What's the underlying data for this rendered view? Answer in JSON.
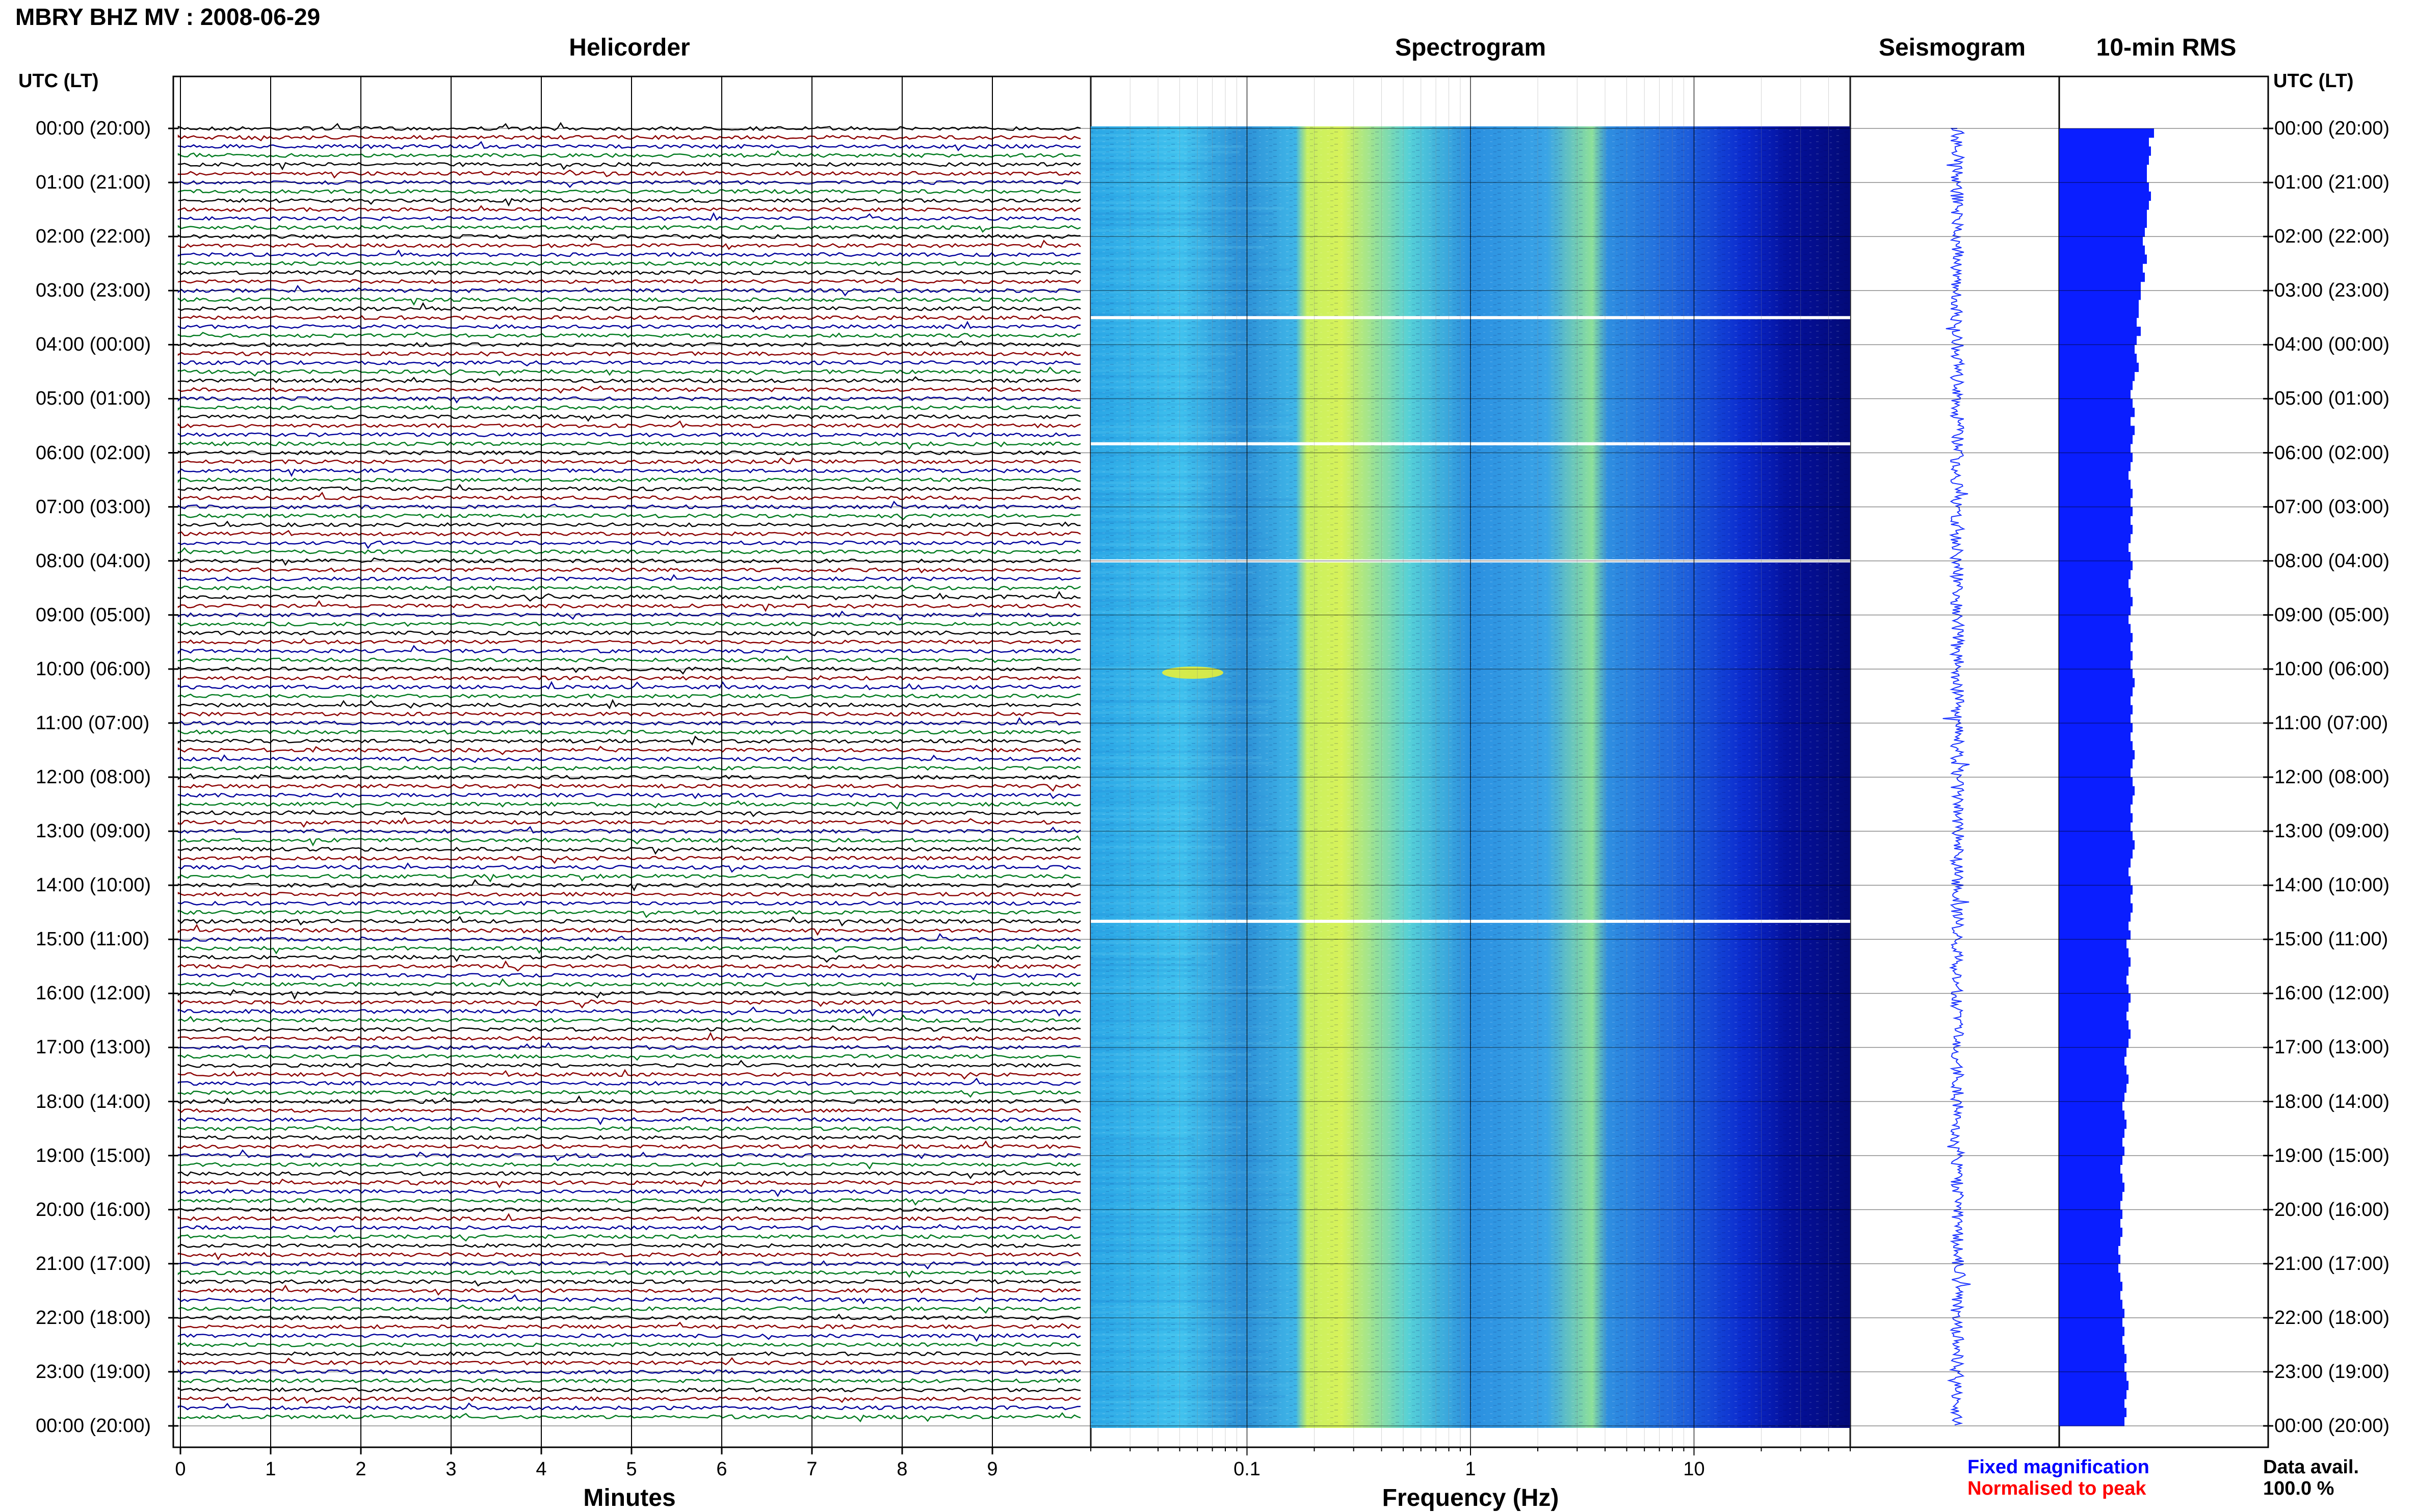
{
  "header": {
    "title": "MBRY BHZ MV : 2008-06-29"
  },
  "panels": {
    "helicorder": "Helicorder",
    "spectrogram": "Spectrogram",
    "seismogram": "Seismogram",
    "rms": "10-min RMS"
  },
  "axis_labels": {
    "left_utc": "UTC (LT)",
    "right_utc": "UTC (LT)"
  },
  "time_labels": [
    "00:00 (20:00)",
    "01:00 (21:00)",
    "02:00 (22:00)",
    "03:00 (23:00)",
    "04:00 (00:00)",
    "05:00 (01:00)",
    "06:00 (02:00)",
    "07:00 (03:00)",
    "08:00 (04:00)",
    "09:00 (05:00)",
    "10:00 (06:00)",
    "11:00 (07:00)",
    "12:00 (08:00)",
    "13:00 (09:00)",
    "14:00 (10:00)",
    "15:00 (11:00)",
    "16:00 (12:00)",
    "17:00 (13:00)",
    "18:00 (14:00)",
    "19:00 (15:00)",
    "20:00 (16:00)",
    "21:00 (17:00)",
    "22:00 (18:00)",
    "23:00 (19:00)",
    "00:00 (20:00)"
  ],
  "legend": {
    "fixed": "Fixed magnification",
    "normalised": "Normalised to peak",
    "avail_label": "Data avail.",
    "avail_value": "100.0 %"
  },
  "colors": {
    "trace_cycle": [
      "#000000",
      "#8b0000",
      "#00009b",
      "#007a1e"
    ],
    "rms_bar": "#0a1eff",
    "seismogram": "#1a32ff",
    "legend_fixed": "#0000ff",
    "legend_normalised": "#ff0000"
  },
  "chart_data": [
    {
      "type": "line",
      "panel": "Helicorder",
      "xlabel": "Minutes",
      "x_ticks": [
        "0",
        "1",
        "2",
        "3",
        "4",
        "5",
        "6",
        "7",
        "8",
        "9"
      ],
      "xlim": [
        0,
        10
      ],
      "trace_minutes": 10,
      "trace_count": 144
    },
    {
      "type": "heatmap",
      "panel": "Spectrogram",
      "xlabel": "Frequency (Hz)",
      "x_scale": "log",
      "x_ticks": [
        "0.1",
        "1",
        "10"
      ],
      "xlim": [
        0.02,
        50
      ],
      "white_gaps_utc": [
        "03:30",
        "05:50",
        "08:00",
        "14:40"
      ]
    },
    {
      "type": "line",
      "panel": "Seismogram"
    },
    {
      "type": "bar",
      "panel": "10-min RMS",
      "orientation": "horizontal",
      "interval_minutes": 10,
      "values_relative": [
        0.93,
        0.88,
        0.9,
        0.88,
        0.86,
        0.86,
        0.88,
        0.9,
        0.88,
        0.86,
        0.86,
        0.84,
        0.82,
        0.84,
        0.86,
        0.82,
        0.84,
        0.8,
        0.8,
        0.78,
        0.78,
        0.76,
        0.8,
        0.76,
        0.74,
        0.76,
        0.78,
        0.74,
        0.72,
        0.7,
        0.72,
        0.74,
        0.7,
        0.74,
        0.72,
        0.7,
        0.72,
        0.7,
        0.68,
        0.7,
        0.72,
        0.7,
        0.72,
        0.7,
        0.72,
        0.7,
        0.68,
        0.7,
        0.72,
        0.7,
        0.68,
        0.7,
        0.72,
        0.7,
        0.68,
        0.7,
        0.72,
        0.7,
        0.72,
        0.7,
        0.72,
        0.74,
        0.72,
        0.7,
        0.72,
        0.7,
        0.72,
        0.7,
        0.72,
        0.74,
        0.72,
        0.7,
        0.72,
        0.74,
        0.72,
        0.7,
        0.72,
        0.7,
        0.72,
        0.74,
        0.72,
        0.7,
        0.68,
        0.7,
        0.72,
        0.7,
        0.72,
        0.7,
        0.68,
        0.7,
        0.66,
        0.68,
        0.7,
        0.68,
        0.66,
        0.68,
        0.7,
        0.68,
        0.66,
        0.68,
        0.7,
        0.68,
        0.66,
        0.64,
        0.66,
        0.68,
        0.66,
        0.64,
        0.62,
        0.64,
        0.66,
        0.64,
        0.62,
        0.64,
        0.62,
        0.6,
        0.62,
        0.64,
        0.62,
        0.6,
        0.62,
        0.6,
        0.62,
        0.6,
        0.58,
        0.6,
        0.58,
        0.6,
        0.62,
        0.6,
        0.62,
        0.64,
        0.62,
        0.64,
        0.62,
        0.64,
        0.66,
        0.64,
        0.66,
        0.68,
        0.66,
        0.64,
        0.66,
        0.64
      ]
    }
  ]
}
